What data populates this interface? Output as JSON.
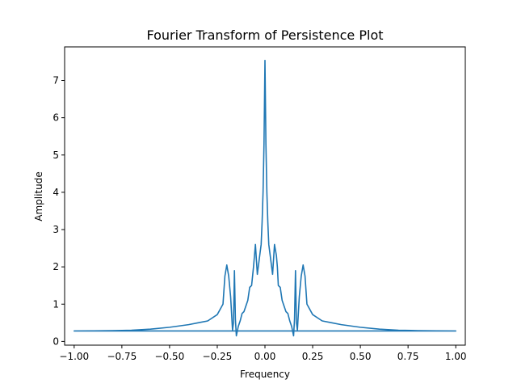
{
  "chart_data": {
    "type": "line",
    "title": "Fourier Transform of Persistence Plot",
    "xlabel": "Frequency",
    "ylabel": "Amplitude",
    "xlim": [
      -1.05,
      1.05
    ],
    "ylim": [
      -0.1,
      7.9
    ],
    "x_ticks": [
      -1.0,
      -0.75,
      -0.5,
      -0.25,
      0.0,
      0.25,
      0.5,
      0.75,
      1.0
    ],
    "x_tick_labels": [
      "−1.00",
      "−0.75",
      "−0.50",
      "−0.25",
      "0.00",
      "0.25",
      "0.50",
      "0.75",
      "1.00"
    ],
    "y_ticks": [
      0,
      1,
      2,
      3,
      4,
      5,
      6,
      7
    ],
    "y_tick_labels": [
      "0",
      "1",
      "2",
      "3",
      "4",
      "5",
      "6",
      "7"
    ],
    "grid": false,
    "series": [
      {
        "color": "#1f77b4",
        "x": [
          0.0,
          0.005,
          0.01,
          0.015,
          0.02,
          0.03,
          0.04,
          0.05,
          0.06,
          0.065,
          0.07,
          0.08,
          0.09,
          0.1,
          0.11,
          0.12,
          0.13,
          0.14,
          0.15,
          0.155,
          0.16,
          0.165,
          0.17,
          0.18,
          0.19,
          0.2,
          0.21,
          0.22,
          0.25,
          0.3,
          0.35,
          0.4,
          0.5,
          0.6,
          0.7,
          0.8,
          0.9,
          1.0,
          0.998,
          -1.0,
          -0.9,
          -0.8,
          -0.7,
          -0.6,
          -0.5,
          -0.4,
          -0.35,
          -0.3,
          -0.25,
          -0.22,
          -0.21,
          -0.2,
          -0.19,
          -0.18,
          -0.17,
          -0.165,
          -0.16,
          -0.155,
          -0.15,
          -0.14,
          -0.13,
          -0.12,
          -0.11,
          -0.1,
          -0.09,
          -0.08,
          -0.07,
          -0.06,
          -0.055,
          -0.05,
          -0.04,
          -0.03,
          -0.02,
          -0.015,
          -0.01,
          -0.005,
          0.0
        ],
        "y": [
          7.55,
          5.3,
          4.0,
          3.2,
          2.6,
          2.2,
          1.8,
          2.6,
          2.3,
          2.0,
          1.5,
          1.45,
          1.1,
          0.95,
          0.8,
          0.75,
          0.55,
          0.4,
          0.15,
          0.6,
          1.9,
          0.5,
          0.3,
          1.2,
          1.75,
          2.05,
          1.75,
          1.0,
          0.72,
          0.55,
          0.5,
          0.45,
          0.38,
          0.33,
          0.3,
          0.29,
          0.285,
          0.28,
          0.28,
          0.28,
          0.285,
          0.29,
          0.3,
          0.33,
          0.38,
          0.45,
          0.5,
          0.55,
          0.72,
          1.0,
          1.75,
          2.05,
          1.75,
          1.2,
          0.3,
          0.5,
          1.9,
          0.6,
          0.15,
          0.4,
          0.55,
          0.75,
          0.8,
          0.95,
          1.1,
          1.45,
          1.5,
          2.0,
          2.3,
          2.6,
          1.8,
          2.2,
          2.6,
          3.2,
          4.0,
          5.3,
          7.55
        ]
      }
    ]
  }
}
